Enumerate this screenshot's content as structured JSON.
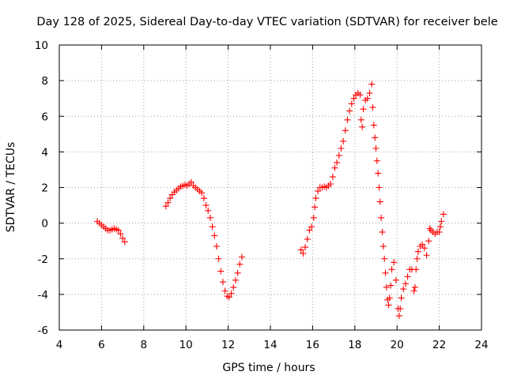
{
  "chart_data": {
    "type": "scatter",
    "title": "Day 128 of 2025, Sidereal Day-to-day VTEC variation (SDTVAR) for receiver bele",
    "xlabel": "GPS time / hours",
    "ylabel": "SDTVAR / TECUs",
    "xlim": [
      4,
      24
    ],
    "ylim": [
      -6,
      10
    ],
    "xticks": [
      4,
      6,
      8,
      10,
      12,
      14,
      16,
      18,
      20,
      22,
      24
    ],
    "yticks": [
      -6,
      -4,
      -2,
      0,
      2,
      4,
      6,
      8,
      10
    ],
    "grid": true,
    "marker": "+",
    "marker_color": "#ff0000",
    "series": [
      {
        "name": "SDTVAR",
        "points": [
          [
            5.8,
            0.1
          ],
          [
            5.9,
            0.0
          ],
          [
            6.0,
            -0.1
          ],
          [
            6.1,
            -0.2
          ],
          [
            6.2,
            -0.3
          ],
          [
            6.3,
            -0.4
          ],
          [
            6.4,
            -0.4
          ],
          [
            6.5,
            -0.35
          ],
          [
            6.6,
            -0.3
          ],
          [
            6.7,
            -0.35
          ],
          [
            6.8,
            -0.4
          ],
          [
            6.9,
            -0.6
          ],
          [
            7.0,
            -0.85
          ],
          [
            7.1,
            -1.05
          ],
          [
            9.05,
            0.95
          ],
          [
            9.15,
            1.15
          ],
          [
            9.25,
            1.4
          ],
          [
            9.35,
            1.6
          ],
          [
            9.45,
            1.75
          ],
          [
            9.55,
            1.85
          ],
          [
            9.65,
            1.95
          ],
          [
            9.75,
            2.05
          ],
          [
            9.85,
            2.1
          ],
          [
            9.95,
            2.15
          ],
          [
            10.05,
            2.1
          ],
          [
            10.15,
            2.2
          ],
          [
            10.25,
            2.3
          ],
          [
            10.35,
            2.1
          ],
          [
            10.45,
            2.0
          ],
          [
            10.55,
            1.9
          ],
          [
            10.65,
            1.8
          ],
          [
            10.75,
            1.7
          ],
          [
            10.85,
            1.4
          ],
          [
            10.95,
            1.0
          ],
          [
            11.05,
            0.7
          ],
          [
            11.15,
            0.3
          ],
          [
            11.25,
            -0.2
          ],
          [
            11.35,
            -0.7
          ],
          [
            11.45,
            -1.3
          ],
          [
            11.55,
            -2.0
          ],
          [
            11.65,
            -2.7
          ],
          [
            11.75,
            -3.3
          ],
          [
            11.85,
            -3.8
          ],
          [
            11.95,
            -4.1
          ],
          [
            12.05,
            -4.15
          ],
          [
            12.15,
            -3.95
          ],
          [
            12.25,
            -3.6
          ],
          [
            12.35,
            -3.2
          ],
          [
            12.45,
            -2.8
          ],
          [
            12.55,
            -2.3
          ],
          [
            12.65,
            -1.9
          ],
          [
            15.45,
            -1.5
          ],
          [
            15.55,
            -1.7
          ],
          [
            15.65,
            -1.35
          ],
          [
            15.75,
            -0.9
          ],
          [
            15.85,
            -0.4
          ],
          [
            15.95,
            -0.2
          ],
          [
            16.05,
            0.3
          ],
          [
            16.1,
            0.9
          ],
          [
            16.15,
            1.4
          ],
          [
            16.25,
            1.8
          ],
          [
            16.35,
            2.0
          ],
          [
            16.45,
            2.0
          ],
          [
            16.55,
            2.05
          ],
          [
            16.65,
            2.0
          ],
          [
            16.75,
            2.1
          ],
          [
            16.85,
            2.2
          ],
          [
            16.95,
            2.6
          ],
          [
            17.05,
            3.1
          ],
          [
            17.15,
            3.4
          ],
          [
            17.25,
            3.8
          ],
          [
            17.35,
            4.2
          ],
          [
            17.45,
            4.6
          ],
          [
            17.55,
            5.2
          ],
          [
            17.65,
            5.8
          ],
          [
            17.75,
            6.3
          ],
          [
            17.85,
            6.7
          ],
          [
            17.95,
            7.0
          ],
          [
            18.05,
            7.2
          ],
          [
            18.15,
            7.3
          ],
          [
            18.25,
            7.2
          ],
          [
            18.3,
            5.8
          ],
          [
            18.35,
            5.4
          ],
          [
            18.4,
            6.4
          ],
          [
            18.5,
            6.9
          ],
          [
            18.6,
            7.0
          ],
          [
            18.7,
            7.3
          ],
          [
            18.8,
            7.8
          ],
          [
            18.85,
            6.5
          ],
          [
            18.9,
            5.5
          ],
          [
            18.95,
            4.8
          ],
          [
            19.0,
            4.2
          ],
          [
            19.05,
            3.5
          ],
          [
            19.1,
            2.8
          ],
          [
            19.15,
            2.0
          ],
          [
            19.2,
            1.2
          ],
          [
            19.25,
            0.3
          ],
          [
            19.3,
            -0.5
          ],
          [
            19.35,
            -1.3
          ],
          [
            19.4,
            -2.0
          ],
          [
            19.45,
            -2.8
          ],
          [
            19.5,
            -3.6
          ],
          [
            19.55,
            -4.3
          ],
          [
            19.6,
            -4.6
          ],
          [
            19.65,
            -4.2
          ],
          [
            19.7,
            -3.5
          ],
          [
            19.75,
            -2.6
          ],
          [
            19.85,
            -2.2
          ],
          [
            19.95,
            -3.2
          ],
          [
            20.05,
            -4.8
          ],
          [
            20.1,
            -5.2
          ],
          [
            20.15,
            -4.8
          ],
          [
            20.2,
            -4.2
          ],
          [
            20.3,
            -3.7
          ],
          [
            20.4,
            -3.4
          ],
          [
            20.5,
            -3.0
          ],
          [
            20.6,
            -2.6
          ],
          [
            20.7,
            -2.6
          ],
          [
            20.8,
            -3.8
          ],
          [
            20.85,
            -3.6
          ],
          [
            20.9,
            -2.6
          ],
          [
            20.95,
            -2.0
          ],
          [
            21.0,
            -1.6
          ],
          [
            21.1,
            -1.3
          ],
          [
            21.2,
            -1.2
          ],
          [
            21.3,
            -1.4
          ],
          [
            21.4,
            -1.8
          ],
          [
            21.5,
            -1.0
          ],
          [
            21.55,
            -0.3
          ],
          [
            21.6,
            -0.4
          ],
          [
            21.7,
            -0.5
          ],
          [
            21.8,
            -0.6
          ],
          [
            21.9,
            -0.5
          ],
          [
            22.0,
            -0.5
          ],
          [
            22.05,
            -0.2
          ],
          [
            22.1,
            0.1
          ],
          [
            22.2,
            0.5
          ]
        ]
      }
    ]
  }
}
